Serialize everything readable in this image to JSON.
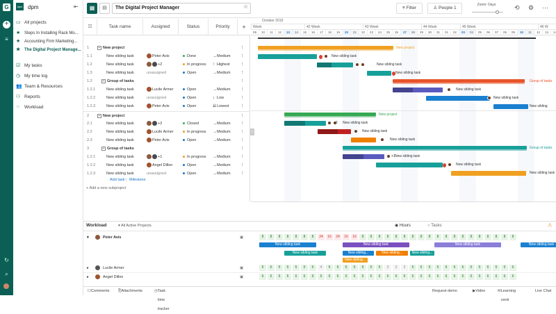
{
  "sidebar": {
    "workspace": "dpm",
    "workspace_badge": "dpm",
    "items": [
      {
        "label": "All projects",
        "icon": "folder-icon"
      },
      {
        "label": "Steps In Installing Rack Mo...",
        "icon": "star-icon"
      },
      {
        "label": "Accounting Firm Marketing...",
        "icon": "star-icon"
      },
      {
        "label": "The Digital Project Manage...",
        "icon": "star-icon"
      },
      {
        "label": "My tasks",
        "icon": "tasks-icon"
      },
      {
        "label": "My time log",
        "icon": "clock-icon"
      },
      {
        "label": "Team & Resources",
        "icon": "team-icon"
      },
      {
        "label": "Reports",
        "icon": "reports-icon"
      },
      {
        "label": "Workload",
        "icon": "workload-icon"
      }
    ]
  },
  "toolbar": {
    "project_title": "The Digital Project Manager",
    "filter_label": "Filter",
    "people_label": "People 1",
    "zoom_label": "Zoom: Days"
  },
  "grid": {
    "headers": {
      "task": "Task name",
      "assigned": "Assigned",
      "status": "Status",
      "priority": "Priority",
      "add": "+"
    },
    "rows": [
      {
        "num": "1",
        "name": "New project",
        "type": "project",
        "assigned": "",
        "status": "",
        "priority": ""
      },
      {
        "num": "1.1",
        "name": "New sibling task",
        "type": "task",
        "assigned": "Peter Avis",
        "status": "Done",
        "status_color": "#35a853",
        "priority": "Medium",
        "pr_arrow": "→"
      },
      {
        "num": "1.2",
        "name": "New sibling task",
        "type": "task",
        "assigned": "+2",
        "status": "In progress",
        "status_color": "#e8a020",
        "priority": "Highest",
        "pr_arrow": "↑"
      },
      {
        "num": "1.3",
        "name": "New sibling task",
        "type": "task",
        "assigned": "unassigned",
        "status": "Open",
        "status_color": "#1a73c8",
        "priority": "Medium",
        "pr_arrow": "→"
      },
      {
        "num": "1.2",
        "name": "Group of tasks",
        "type": "group",
        "assigned": "",
        "status": "",
        "priority": ""
      },
      {
        "num": "1.2.1",
        "name": "New sibling task",
        "type": "task",
        "assigned": "Lucile Armer",
        "status": "Open",
        "status_color": "#1a73c8",
        "priority": "Medium",
        "pr_arrow": "→"
      },
      {
        "num": "1.2.2",
        "name": "New sibling task",
        "type": "task",
        "assigned": "unassigned",
        "status": "Open",
        "status_color": "#1a73c8",
        "priority": "Low",
        "pr_arrow": "↓"
      },
      {
        "num": "1.2.3",
        "name": "New sibling task",
        "type": "task",
        "assigned": "Peter Avis",
        "status": "Open",
        "status_color": "#1a73c8",
        "priority": "Lowest",
        "pr_arrow": "⇊"
      },
      {
        "num": "2",
        "name": "New project",
        "type": "project",
        "assigned": "",
        "status": "",
        "priority": ""
      },
      {
        "num": "2.1",
        "name": "New sibling task",
        "type": "task",
        "assigned": "+2",
        "status": "Closed",
        "status_color": "#35a853",
        "priority": "Medium",
        "pr_arrow": "→"
      },
      {
        "num": "2.2",
        "name": "New sibling task",
        "type": "task",
        "assigned": "Lucile Armer",
        "status": "In progress",
        "status_color": "#e8a020",
        "priority": "Medium",
        "pr_arrow": "→"
      },
      {
        "num": "2.3",
        "name": "New sibling task",
        "type": "task",
        "assigned": "Peter Avis",
        "status": "Open",
        "status_color": "#1a73c8",
        "priority": "Medium",
        "pr_arrow": "→"
      },
      {
        "num": "3",
        "name": "Group of tasks",
        "type": "group",
        "assigned": "",
        "status": "",
        "priority": ""
      },
      {
        "num": "1.2.1",
        "name": "New sibling task",
        "type": "task",
        "assigned": "+1",
        "status": "In progress",
        "status_color": "#e8a020",
        "priority": "Medium",
        "pr_arrow": "→"
      },
      {
        "num": "1.2.2",
        "name": "New sibling task",
        "type": "task",
        "assigned": "Angel Dillon",
        "status": "Open",
        "status_color": "#1a73c8",
        "priority": "Medium",
        "pr_arrow": "→"
      },
      {
        "num": "1.2.3",
        "name": "New sibling task",
        "type": "task",
        "assigned": "unassigned",
        "status": "Open",
        "status_color": "#1a73c8",
        "priority": "Medium",
        "pr_arrow": "→"
      }
    ],
    "add_task": "Add task",
    "milestone": "Milestone",
    "add_subproject": "Add a new subproject"
  },
  "timeline": {
    "month": "October 2019",
    "weeks": [
      "Week",
      "42 Week",
      "43 Week",
      "44 Week",
      "45 Week",
      "46 W"
    ],
    "days": [
      "09",
      "10",
      "11",
      "12",
      "13",
      "14",
      "15",
      "16",
      "17",
      "18",
      "19",
      "20",
      "21",
      "22",
      "23",
      "24",
      "25",
      "26",
      "27",
      "28",
      "29",
      "30",
      "31",
      "01",
      "02",
      "03",
      "04",
      "05",
      "06",
      "07",
      "08",
      "09",
      "10",
      "11",
      "12",
      "13",
      "14"
    ],
    "bar_labels": [
      "New project",
      "New sibling task",
      "New sibling task",
      "New sibling task",
      "Group of tasks",
      "New sibling task",
      "New sibling task",
      "New sibling",
      "New project",
      "New sibling task",
      "New sibling task",
      "New sibling task",
      "Group of tasks",
      "New sibling task",
      "New sibling task",
      "New sibling task"
    ],
    "count_plus2": "+2",
    "count_plus1": "+1"
  },
  "workload": {
    "title": "Workload",
    "filter": "All Active Projects",
    "hours": "Hours",
    "tasks": "Tasks",
    "people": [
      "Peter Avis",
      "Lucile Armer",
      "Angel Dillon"
    ],
    "peter_values": [
      "8",
      "8",
      "8",
      "8",
      "8",
      "8",
      "8",
      "24",
      "16",
      "24",
      "16",
      "16",
      "8",
      "8",
      "8",
      "8",
      "8",
      "8",
      "8",
      "8",
      "8",
      "8",
      "8",
      "8",
      "8",
      "8",
      "8",
      "8",
      "8",
      "8",
      "8"
    ],
    "peter_bars": [
      "New sibling task",
      "New sibling task",
      "New sibling task",
      "New sibling task",
      "New sibling task",
      "New sibling...",
      "New sibling...",
      "New sibling...",
      "New sibling..."
    ],
    "lucile_values": [
      "6",
      "6",
      "6",
      "6",
      "6",
      "6",
      "6",
      "4",
      "6",
      "6",
      "6",
      "6",
      "6",
      "6",
      "6",
      "2",
      "2",
      "2",
      "6",
      "6",
      "6",
      "6",
      "6",
      "6",
      "6",
      "6",
      "6",
      "6",
      "6",
      "6",
      "6"
    ],
    "angel_values": [
      "6",
      "6",
      "6",
      "6",
      "6",
      "6",
      "6",
      "6",
      "6",
      "6",
      "6",
      "6",
      "6",
      "6",
      "6",
      "6",
      "6",
      "6",
      "6",
      "6",
      "6",
      "6",
      "6",
      "6",
      "6",
      "6",
      "6",
      "6",
      "6",
      "6",
      "6"
    ]
  },
  "footer": {
    "comments": "Comments",
    "attachments": "Attachments",
    "tracker": "Task time tracker",
    "request_demo": "Request demo",
    "video": "Video",
    "learning": "Learning centr",
    "live_chat": "Live Chat"
  }
}
